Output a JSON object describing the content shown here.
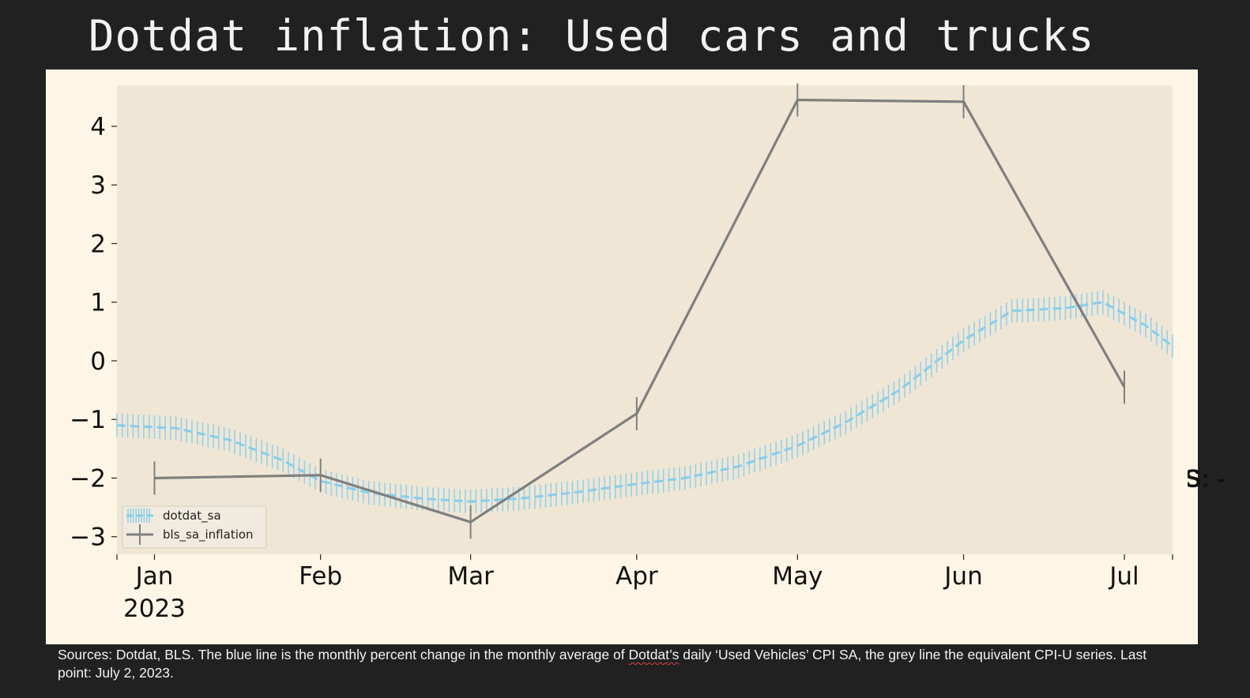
{
  "slide": {
    "title": "Dotdat inflation: Used cars and trucks",
    "clipped_text": "S: -",
    "caption": {
      "before": "Sources: Dotdat, BLS. The blue line is the monthly percent change in the monthly average of ",
      "squiggle": "Dotdat’s",
      "after": " daily ‘Used Vehicles’ CPI SA, the grey line the equivalent CPI-U series. Last point: July 2, 2023."
    }
  },
  "colors": {
    "background": "#212121",
    "panel": "#fdf6e6",
    "plot_area": "#efe6d6",
    "dotdat_line": "#87ceeb",
    "bls_line": "#7f7f7f"
  },
  "chart_data": {
    "type": "line",
    "title": "",
    "xlabel": "",
    "ylabel": "",
    "ylim": [
      -3.3,
      4.7
    ],
    "yticks": [
      -3,
      -2,
      -1,
      0,
      1,
      2,
      3,
      4
    ],
    "ytick_labels": [
      "−3",
      "−2",
      "−1",
      "0",
      "1",
      "2",
      "3",
      "4"
    ],
    "xlim": [
      "2022-12-25",
      "2023-07-10"
    ],
    "xticks": [
      "2023-01-01",
      "2023-02-01",
      "2023-03-01",
      "2023-04-01",
      "2023-05-01",
      "2023-06-01",
      "2023-07-01"
    ],
    "xtick_labels": [
      "Jan\n2023",
      "Feb",
      "Mar",
      "Apr",
      "May",
      "Jun",
      "Jul"
    ],
    "grid": false,
    "legend_position": "lower-left",
    "series": [
      {
        "name": "dotdat_sa",
        "style": "dashed-with-daily-markers",
        "color": "#87ceeb",
        "x": [
          "2022-12-25",
          "2023-01-05",
          "2023-01-15",
          "2023-01-25",
          "2023-02-01",
          "2023-02-10",
          "2023-02-20",
          "2023-03-01",
          "2023-03-10",
          "2023-03-20",
          "2023-04-01",
          "2023-04-10",
          "2023-04-20",
          "2023-05-01",
          "2023-05-10",
          "2023-05-20",
          "2023-06-01",
          "2023-06-10",
          "2023-06-20",
          "2023-06-27",
          "2023-07-05",
          "2023-07-10"
        ],
        "y": [
          -1.1,
          -1.15,
          -1.35,
          -1.7,
          -2.05,
          -2.25,
          -2.35,
          -2.4,
          -2.35,
          -2.25,
          -2.1,
          -2.0,
          -1.8,
          -1.45,
          -1.05,
          -0.5,
          0.35,
          0.85,
          0.9,
          1.0,
          0.6,
          0.25
        ]
      },
      {
        "name": "bls_sa_inflation",
        "style": "solid-with-markers",
        "color": "#7f7f7f",
        "x": [
          "2023-01-01",
          "2023-02-01",
          "2023-03-01",
          "2023-04-01",
          "2023-05-01",
          "2023-06-01",
          "2023-07-01"
        ],
        "y": [
          -2.0,
          -1.95,
          -2.75,
          -0.9,
          4.45,
          4.42,
          -0.45
        ]
      }
    ]
  }
}
